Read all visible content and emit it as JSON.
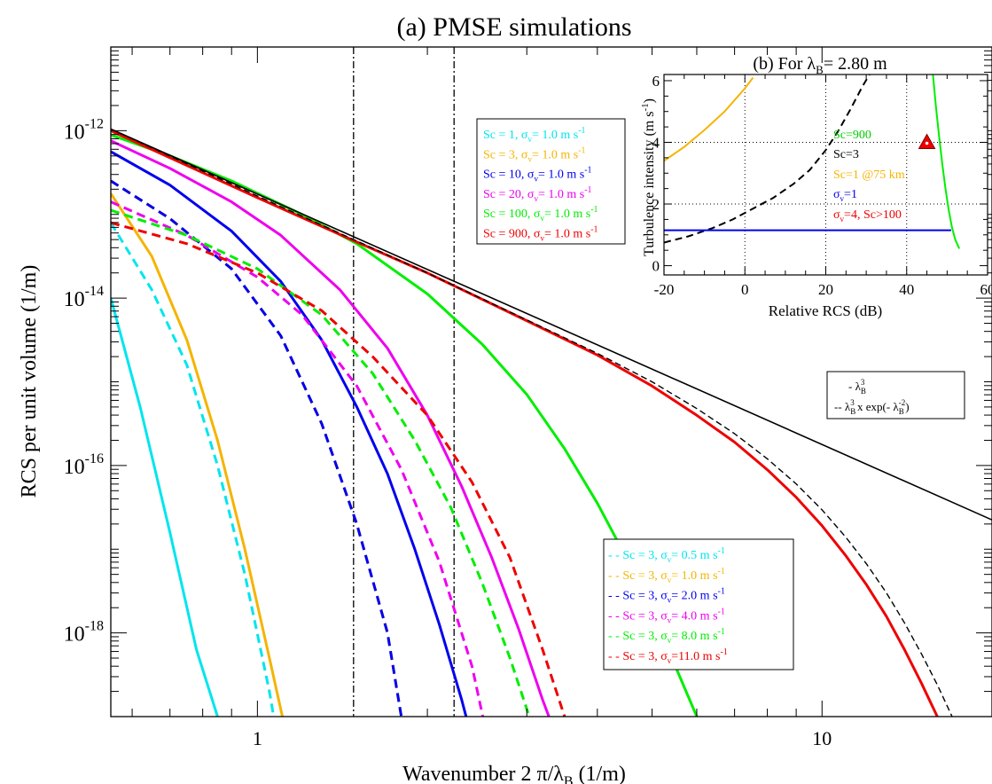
{
  "figure": {
    "title": "(a) PMSE simulations",
    "xlabel": "Wavenumber 2  π/λ",
    "xlabel_sub": "B",
    "xlabel_unit": " (1/m)",
    "ylabel": "RCS per unit volume (1/m)"
  },
  "chart_data": [
    {
      "type": "line",
      "title": "(a) PMSE simulations",
      "xlabel": "Wavenumber 2 π/λB (1/m)",
      "ylabel": "RCS per unit volume (1/m)",
      "xscale": "log",
      "yscale": "log",
      "xlim": [
        0.55,
        20
      ],
      "ylim": [
        1e-19,
        1e-11
      ],
      "x_ticks": [
        {
          "v": 1,
          "label": "1"
        },
        {
          "v": 10,
          "label": "10"
        }
      ],
      "y_ticks": [
        {
          "exp": -12,
          "label": "10",
          "sup": "-12"
        },
        {
          "exp": -14,
          "label": "10",
          "sup": "-14"
        },
        {
          "exp": -16,
          "label": "10",
          "sup": "-16"
        },
        {
          "exp": -18,
          "label": "10",
          "sup": "-18"
        }
      ],
      "vlines": [
        1.48,
        2.23
      ],
      "series": [
        {
          "name": "Sc = 1, σv = 1.0 m s-1",
          "color": "#00e5ee",
          "dash": "solid",
          "x": [
            0.55,
            0.62,
            0.7,
            0.78,
            0.85,
            0.9
          ],
          "y": [
            -14.0,
            -15.3,
            -16.8,
            -18.2,
            -19.0,
            -19.5
          ]
        },
        {
          "name": "Sc = 3, σv = 1.0 m s-1",
          "color": "#f5b400",
          "dash": "solid",
          "x": [
            0.55,
            0.65,
            0.75,
            0.85,
            0.95,
            1.05,
            1.15
          ],
          "y": [
            -12.75,
            -13.5,
            -14.5,
            -15.7,
            -17.0,
            -18.3,
            -19.5
          ]
        },
        {
          "name": "Sc = 10, σv = 1.0 m s-1",
          "color": "#0000ee",
          "dash": "solid",
          "x": [
            0.55,
            0.7,
            0.9,
            1.1,
            1.3,
            1.5,
            1.7,
            1.9,
            2.1,
            2.3,
            2.45
          ],
          "y": [
            -12.25,
            -12.65,
            -13.2,
            -13.8,
            -14.5,
            -15.3,
            -16.1,
            -17.0,
            -17.9,
            -18.8,
            -19.5
          ]
        },
        {
          "name": "Sc = 20, σv = 1.0 m s-1",
          "color": "#ee00ee",
          "dash": "solid",
          "x": [
            0.55,
            0.7,
            0.9,
            1.1,
            1.4,
            1.7,
            2.0,
            2.3,
            2.6,
            2.9,
            3.2,
            3.5
          ],
          "y": [
            -12.12,
            -12.45,
            -12.85,
            -13.25,
            -13.9,
            -14.6,
            -15.4,
            -16.25,
            -17.1,
            -17.95,
            -18.8,
            -19.5
          ]
        },
        {
          "name": "Sc = 100, σv = 1.0 m s-1",
          "color": "#00ee00",
          "dash": "solid",
          "x": [
            0.55,
            0.7,
            0.9,
            1.2,
            1.5,
            2.0,
            2.5,
            3.0,
            3.5,
            4.0,
            4.5,
            5.0,
            5.5,
            6.0,
            6.5
          ],
          "y": [
            -12.05,
            -12.3,
            -12.6,
            -13.0,
            -13.35,
            -13.95,
            -14.55,
            -15.15,
            -15.8,
            -16.45,
            -17.1,
            -17.75,
            -18.4,
            -19.0,
            -19.5
          ]
        },
        {
          "name": "Sc = 900, σv = 1.0 m s-1",
          "color": "#ee0000",
          "dash": "solid",
          "x": [
            0.55,
            0.8,
            1.0,
            1.5,
            2.0,
            3.0,
            4.0,
            5.0,
            6.0,
            7.0,
            8.0,
            9.0,
            10.0,
            11.0,
            12.0,
            13.0,
            14.0,
            15.0,
            16.0,
            17.0,
            17.5
          ],
          "y": [
            -12.0,
            -12.5,
            -12.8,
            -13.33,
            -13.7,
            -14.27,
            -14.68,
            -15.05,
            -15.4,
            -15.72,
            -16.05,
            -16.38,
            -16.72,
            -17.07,
            -17.43,
            -17.8,
            -18.2,
            -18.6,
            -19.0,
            -19.38,
            -19.5
          ]
        },
        {
          "name": "Sc = 3, σv = 0.5 m s-1",
          "color": "#00e5ee",
          "dash": "dashed",
          "x": [
            0.55,
            0.65,
            0.75,
            0.85,
            0.95,
            1.05,
            1.1
          ],
          "y": [
            -13.1,
            -13.9,
            -14.8,
            -16.0,
            -17.3,
            -18.7,
            -19.5
          ]
        },
        {
          "name": "Sc = 3, σv = 1.0 m s-1",
          "color": "#f5b400",
          "dash": "dashed",
          "x": [
            0.55,
            0.7,
            0.9,
            1.1,
            1.3,
            1.5,
            1.7,
            1.85
          ],
          "y": [
            -12.6,
            -13.05,
            -13.65,
            -14.45,
            -15.5,
            -16.7,
            -18.0,
            -19.5
          ]
        },
        {
          "name": "Sc = 3, σv = 2.0 m s-1",
          "color": "#0000ee",
          "dash": "dashed",
          "x": [
            0.55,
            0.7,
            0.9,
            1.1,
            1.3,
            1.5,
            1.7,
            1.85
          ],
          "y": [
            -12.6,
            -13.05,
            -13.65,
            -14.45,
            -15.5,
            -16.7,
            -18.0,
            -19.5
          ]
        },
        {
          "name": "Sc = 3, σv = 4.0 m s-1",
          "color": "#ee00ee",
          "dash": "dashed",
          "x": [
            0.55,
            0.75,
            1.0,
            1.2,
            1.5,
            1.8,
            2.1,
            2.4,
            2.6
          ],
          "y": [
            -12.85,
            -13.25,
            -13.75,
            -14.2,
            -15.05,
            -16.05,
            -17.15,
            -18.4,
            -19.5
          ]
        },
        {
          "name": "Sc = 3, σv = 8.0 m s-1",
          "color": "#00ee00",
          "dash": "dashed",
          "x": [
            0.55,
            0.75,
            1.0,
            1.3,
            1.6,
            1.9,
            2.2,
            2.5,
            2.8,
            3.1,
            3.25
          ],
          "y": [
            -12.95,
            -13.25,
            -13.65,
            -14.2,
            -14.9,
            -15.7,
            -16.5,
            -17.4,
            -18.3,
            -19.2,
            -19.5
          ]
        },
        {
          "name": "Sc = 3, σv = 11.0 m s-1",
          "color": "#ee0000",
          "dash": "dashed",
          "x": [
            0.55,
            0.75,
            1.0,
            1.3,
            1.6,
            2.0,
            2.4,
            2.8,
            3.2,
            3.5,
            3.7
          ],
          "y": [
            -13.1,
            -13.35,
            -13.7,
            -14.15,
            -14.7,
            -15.4,
            -16.2,
            -17.1,
            -18.2,
            -19.0,
            -19.5
          ]
        },
        {
          "name": "- λB3",
          "color": "#000000",
          "dash": "solid",
          "x": [
            0.55,
            20.0
          ],
          "y": [
            -11.98,
            -16.65
          ]
        },
        {
          "name": "-- λB3 x exp(- λB-2)",
          "color": "#000000",
          "dash": "dashed",
          "x": [
            0.55,
            1.0,
            2.0,
            3.0,
            4.0,
            5.0,
            6.0,
            7.0,
            8.0,
            9.0,
            10.0,
            11.0,
            12.0,
            13.0,
            14.0,
            15.0,
            16.0,
            17.0,
            18.0,
            19.0,
            19.5
          ],
          "y": [
            -11.98,
            -12.78,
            -13.7,
            -14.26,
            -14.66,
            -15.0,
            -15.32,
            -15.62,
            -15.92,
            -16.22,
            -16.53,
            -16.85,
            -17.18,
            -17.52,
            -17.88,
            -18.25,
            -18.62,
            -19.0,
            -19.3,
            -19.45,
            -19.5
          ]
        }
      ]
    },
    {
      "type": "line",
      "title": "(b) For  λB= 2.80 m",
      "xlabel": "Relative RCS (dB)",
      "ylabel": "Turbulence intensity (m s-1)",
      "xlim": [
        -20,
        60
      ],
      "ylim": [
        -0.3,
        6.2
      ],
      "x_ticks": [
        -20,
        0,
        20,
        40,
        60
      ],
      "y_ticks": [
        0,
        2,
        4,
        6
      ],
      "hgrid": [
        2,
        4
      ],
      "vgrid": [
        0,
        20,
        40
      ],
      "series": [
        {
          "name": "Sc=1 @75 km",
          "color": "#f5b400",
          "dash": "solid",
          "x": [
            -20,
            -15,
            -10,
            -5,
            0,
            2
          ],
          "y": [
            3.4,
            3.85,
            4.4,
            5.0,
            5.75,
            6.1
          ]
        },
        {
          "name": "Sc=3",
          "color": "#000000",
          "dash": "dashed",
          "x": [
            -20,
            -14,
            -8,
            -3,
            2,
            7,
            12,
            16,
            20,
            23,
            26,
            29,
            30.8
          ],
          "y": [
            0.75,
            0.95,
            1.22,
            1.5,
            1.85,
            2.2,
            2.65,
            3.1,
            3.75,
            4.35,
            5.05,
            5.8,
            6.2
          ]
        },
        {
          "name": "Sc=900",
          "color": "#00ee00",
          "dash": "solid",
          "x": [
            46.5,
            47.2,
            48.0,
            48.8,
            49.6,
            50.4,
            51.2,
            52.0,
            53.0
          ],
          "y": [
            6.2,
            5.2,
            4.2,
            3.3,
            2.5,
            1.8,
            1.25,
            0.85,
            0.55
          ]
        },
        {
          "name": "σv=1",
          "color": "#0000ee",
          "dash": "solid",
          "x": [
            -20,
            51
          ],
          "y": [
            1.15,
            1.15
          ]
        }
      ],
      "markers": [
        {
          "name": "σv=4, Sc>100",
          "color": "#ee0000",
          "shape": "triangle",
          "x": 45,
          "y": 4.0
        }
      ]
    }
  ],
  "legend_top": {
    "items": [
      {
        "sc": "Sc =    1,",
        "sig": "σ",
        "sub": "v",
        "val": "= 1.0 m s",
        "exp": "-1",
        "color": "#00e5ee"
      },
      {
        "sc": "Sc =    3,",
        "sig": "σ",
        "sub": "v",
        "val": "= 1.0 m s",
        "exp": "-1",
        "color": "#f5b400"
      },
      {
        "sc": "Sc =   10,",
        "sig": "σ",
        "sub": "v",
        "val": "= 1.0 m s",
        "exp": "-1",
        "color": "#0000ee"
      },
      {
        "sc": "Sc =   20,",
        "sig": "σ",
        "sub": "v",
        "val": "= 1.0 m s",
        "exp": "-1",
        "color": "#ee00ee"
      },
      {
        "sc": "Sc =  100,",
        "sig": "σ",
        "sub": "v",
        "val": "= 1.0 m s",
        "exp": "-1",
        "color": "#00ee00"
      },
      {
        "sc": "Sc =  900,",
        "sig": "σ",
        "sub": "v",
        "val": "= 1.0 m s",
        "exp": "-1",
        "color": "#ee0000"
      }
    ]
  },
  "legend_bottom": {
    "items": [
      {
        "sc": "- - Sc = 3,",
        "sig": "σ",
        "sub": "v",
        "val": "= 0.5 m s",
        "exp": "-1",
        "color": "#00e5ee"
      },
      {
        "sc": "- - Sc = 3,",
        "sig": "σ",
        "sub": "v",
        "val": "= 1.0 m s",
        "exp": "-1",
        "color": "#f5b400"
      },
      {
        "sc": "- - Sc = 3,",
        "sig": "σ",
        "sub": "v",
        "val": "= 2.0 m s",
        "exp": "-1",
        "color": "#0000ee"
      },
      {
        "sc": "- - Sc = 3,",
        "sig": "σ",
        "sub": "v",
        "val": "= 4.0 m s",
        "exp": "-1",
        "color": "#ee00ee"
      },
      {
        "sc": "- - Sc = 3,",
        "sig": "σ",
        "sub": "v",
        "val": "= 8.0 m s",
        "exp": "-1",
        "color": "#00ee00"
      },
      {
        "sc": "- - Sc = 3,",
        "sig": "σ",
        "sub": "v",
        "val": "=11.0 m s",
        "exp": "-1",
        "color": "#ee0000"
      }
    ]
  },
  "legend_black": {
    "line1_prefix": "-  λ",
    "line1_sub": "B",
    "line1_sup": "3",
    "line2_prefix": "-- λ",
    "line2_sub": "B",
    "line2_sup": "3",
    "line2_mid": " x exp(- λ",
    "line2_sub2": "B",
    "line2_sup2": "-2",
    "line2_end": ")"
  },
  "inset": {
    "title_prefix": "(b) For  λ",
    "title_sub": "B",
    "title_suffix": "= 2.80 m",
    "ylabel": "Turbulence intensity (m s",
    "ylabel_sup": "-1",
    "ylabel_end": ")",
    "xlabel": "Relative RCS (dB)",
    "annotations": [
      {
        "text": "Sc=900",
        "color": "#00cc00"
      },
      {
        "text": "Sc=3",
        "color": "#000000"
      },
      {
        "text": "Sc=1 @75 km",
        "color": "#f5b400"
      },
      {
        "text": "σ",
        "sub": "v",
        "rest": "=1",
        "color": "#0000ee"
      },
      {
        "text": "σ",
        "sub": "v",
        "rest": "=4, Sc>100",
        "color": "#ee0000"
      }
    ]
  }
}
